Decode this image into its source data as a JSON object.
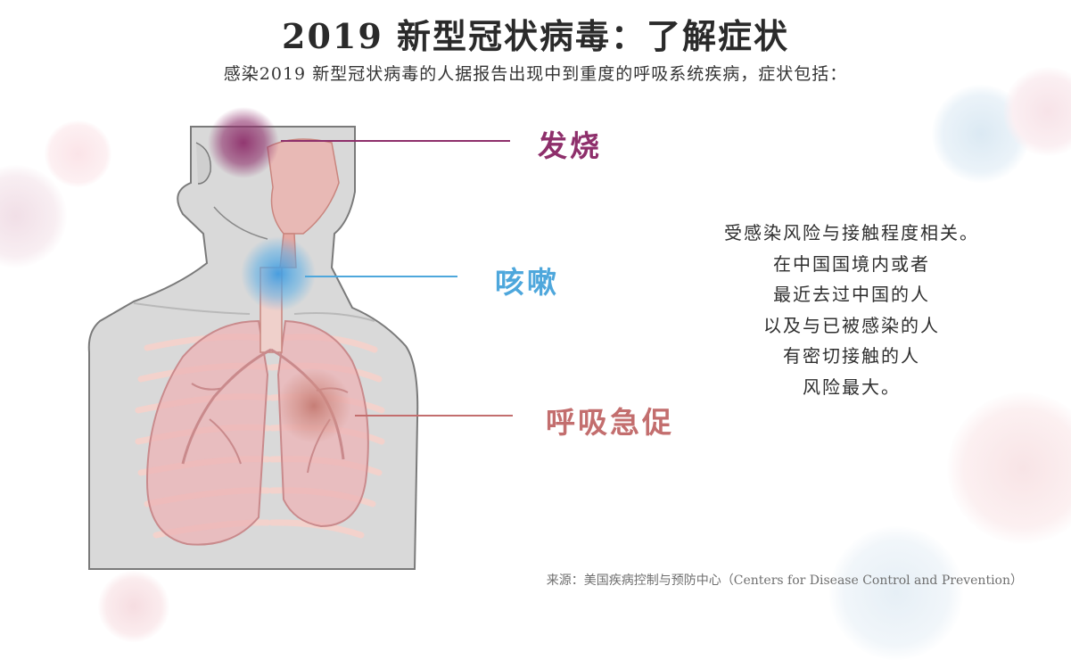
{
  "title": "2019 新型冠状病毒：了解症状",
  "subtitle": "感染2019 新型冠状病毒的人据报告出现中到重度的呼吸系统疾病，症状包括：",
  "symptoms": {
    "fever": {
      "label": "发烧",
      "color": "#8e2f6b"
    },
    "cough": {
      "label": "咳嗽",
      "color": "#4ea7dc"
    },
    "breath": {
      "label": "呼吸急促",
      "color": "#c36e6e"
    }
  },
  "risk_lines": [
    "受感染风险与接触程度相关。",
    "在中国国境内或者",
    "最近去过中国的人",
    "以及与已被感染的人",
    "有密切接触的人",
    "风险最大。"
  ],
  "source": "来源：美国疾病控制与预防中心（Centers for Disease Control and Prevention）"
}
